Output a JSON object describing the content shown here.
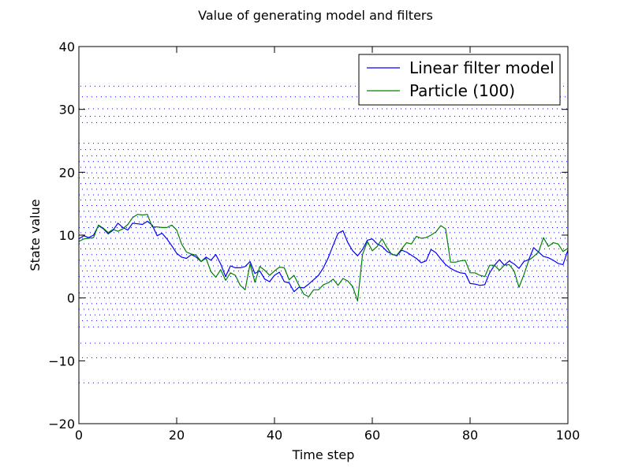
{
  "chart_data": {
    "type": "line",
    "title": "Value of generating model and filters",
    "xlabel": "Time step",
    "ylabel": "State value",
    "xlim": [
      0,
      100
    ],
    "ylim": [
      -20,
      40
    ],
    "xticks": [
      0,
      20,
      40,
      60,
      80,
      100
    ],
    "yticks": [
      -20,
      -10,
      0,
      10,
      20,
      30,
      40
    ],
    "xtick_labels": [
      "0",
      "20",
      "40",
      "60",
      "80",
      "100"
    ],
    "ytick_labels": [
      "−20",
      "−10",
      "0",
      "10",
      "20",
      "30",
      "40"
    ],
    "grid": false,
    "legend_position": "top-right",
    "particle_levels": [
      -13.5,
      -9.5,
      -7.2,
      -4.6,
      -3.6,
      -2.7,
      -1.8,
      -0.9,
      0,
      0.8,
      1.7,
      2.6,
      3.4,
      4.3,
      5.1,
      6,
      6.9,
      7.8,
      8.6,
      9.5,
      10.4,
      11.2,
      12.1,
      12.9,
      13.8,
      14.7,
      15.6,
      16.4,
      17.3,
      18.2,
      19.1,
      19.9,
      20.8,
      21.7,
      22.6,
      23.6,
      24.6,
      27.9,
      28.9,
      30.1,
      32,
      33.7
    ],
    "particle_color": "#0000ff",
    "series": [
      {
        "name": "Linear filter model",
        "color": "#0000ff",
        "x": [
          0,
          1,
          2,
          3,
          4,
          5,
          6,
          7,
          8,
          9,
          10,
          11,
          12,
          13,
          14,
          15,
          16,
          17,
          18,
          19,
          20,
          21,
          22,
          23,
          24,
          25,
          26,
          27,
          28,
          29,
          30,
          31,
          32,
          33,
          34,
          35,
          36,
          37,
          38,
          39,
          40,
          41,
          42,
          43,
          44,
          45,
          46,
          47,
          48,
          49,
          50,
          51,
          52,
          53,
          54,
          55,
          56,
          57,
          58,
          59,
          60,
          61,
          62,
          63,
          64,
          65,
          66,
          67,
          68,
          69,
          70,
          71,
          72,
          73,
          74,
          75,
          76,
          77,
          78,
          79,
          80,
          81,
          82,
          83,
          84,
          85,
          86,
          87,
          88,
          89,
          90,
          91,
          92,
          93,
          94,
          95,
          96,
          97,
          98,
          99,
          100
        ],
        "values": [
          9.4,
          9.9,
          9.6,
          10.0,
          11.5,
          11.0,
          10.2,
          10.8,
          11.9,
          11.2,
          10.8,
          11.9,
          11.8,
          11.7,
          12.2,
          11.6,
          9.9,
          10.3,
          9.4,
          8.3,
          7.1,
          6.5,
          6.3,
          6.9,
          6.5,
          5.8,
          6.5,
          6.0,
          6.9,
          5.4,
          3.4,
          5.1,
          4.8,
          4.8,
          5.0,
          5.8,
          3.9,
          4.3,
          3.0,
          2.6,
          3.6,
          4.1,
          2.6,
          2.4,
          1.0,
          1.7,
          1.6,
          2.2,
          2.9,
          3.6,
          4.8,
          6.4,
          8.4,
          10.3,
          10.7,
          8.8,
          7.5,
          6.7,
          7.7,
          9.2,
          9.4,
          8.6,
          8.2,
          7.4,
          7.0,
          6.7,
          7.6,
          7.3,
          6.8,
          6.3,
          5.6,
          5.9,
          7.7,
          7.2,
          6.2,
          5.3,
          4.7,
          4.3,
          4.0,
          3.9,
          2.3,
          2.2,
          2.0,
          2.1,
          4.0,
          5.2,
          6.1,
          5.2,
          5.9,
          5.4,
          4.7,
          5.8,
          6.1,
          8.0,
          7.3,
          6.6,
          6.4,
          6.0,
          5.5,
          5.3,
          7.6
        ]
      },
      {
        "name": "Particle (100)",
        "color": "#008000",
        "x": [
          0,
          1,
          2,
          3,
          4,
          5,
          6,
          7,
          8,
          9,
          10,
          11,
          12,
          13,
          14,
          15,
          16,
          17,
          18,
          19,
          20,
          21,
          22,
          23,
          24,
          25,
          26,
          27,
          28,
          29,
          30,
          31,
          32,
          33,
          34,
          35,
          36,
          37,
          38,
          39,
          40,
          41,
          42,
          43,
          44,
          45,
          46,
          47,
          48,
          49,
          50,
          51,
          52,
          53,
          54,
          55,
          56,
          57,
          58,
          59,
          60,
          61,
          62,
          63,
          64,
          65,
          66,
          67,
          68,
          69,
          70,
          71,
          72,
          73,
          74,
          75,
          76,
          77,
          78,
          79,
          80,
          81,
          82,
          83,
          84,
          85,
          86,
          87,
          88,
          89,
          90,
          91,
          92,
          93,
          94,
          95,
          96,
          97,
          98,
          99,
          100
        ],
        "values": [
          9.0,
          9.4,
          9.5,
          9.6,
          11.6,
          11.1,
          10.4,
          10.9,
          10.6,
          11.0,
          11.7,
          12.8,
          13.3,
          13.2,
          13.3,
          11.3,
          11.3,
          11.2,
          11.2,
          11.6,
          10.8,
          8.6,
          7.3,
          7.0,
          6.8,
          5.8,
          6.3,
          4.2,
          3.3,
          4.5,
          2.8,
          4.0,
          3.6,
          2.0,
          1.3,
          5.4,
          2.5,
          5.0,
          4.4,
          3.6,
          4.3,
          4.9,
          4.8,
          2.9,
          3.6,
          2.0,
          0.6,
          0.2,
          1.3,
          1.3,
          2.1,
          2.4,
          3.0,
          2.0,
          3.1,
          2.7,
          1.8,
          -0.5,
          6.9,
          9.0,
          7.5,
          8.2,
          9.4,
          8.0,
          6.9,
          6.8,
          7.8,
          8.8,
          8.6,
          9.8,
          9.5,
          9.6,
          10.0,
          10.5,
          11.5,
          11.0,
          5.7,
          5.7,
          5.9,
          6.0,
          4.0,
          4.0,
          3.6,
          3.4,
          5.2,
          5.2,
          4.4,
          5.2,
          5.3,
          4.3,
          1.7,
          3.7,
          6.0,
          6.6,
          7.3,
          9.6,
          8.2,
          8.8,
          8.6,
          7.4,
          7.9
        ]
      }
    ]
  }
}
